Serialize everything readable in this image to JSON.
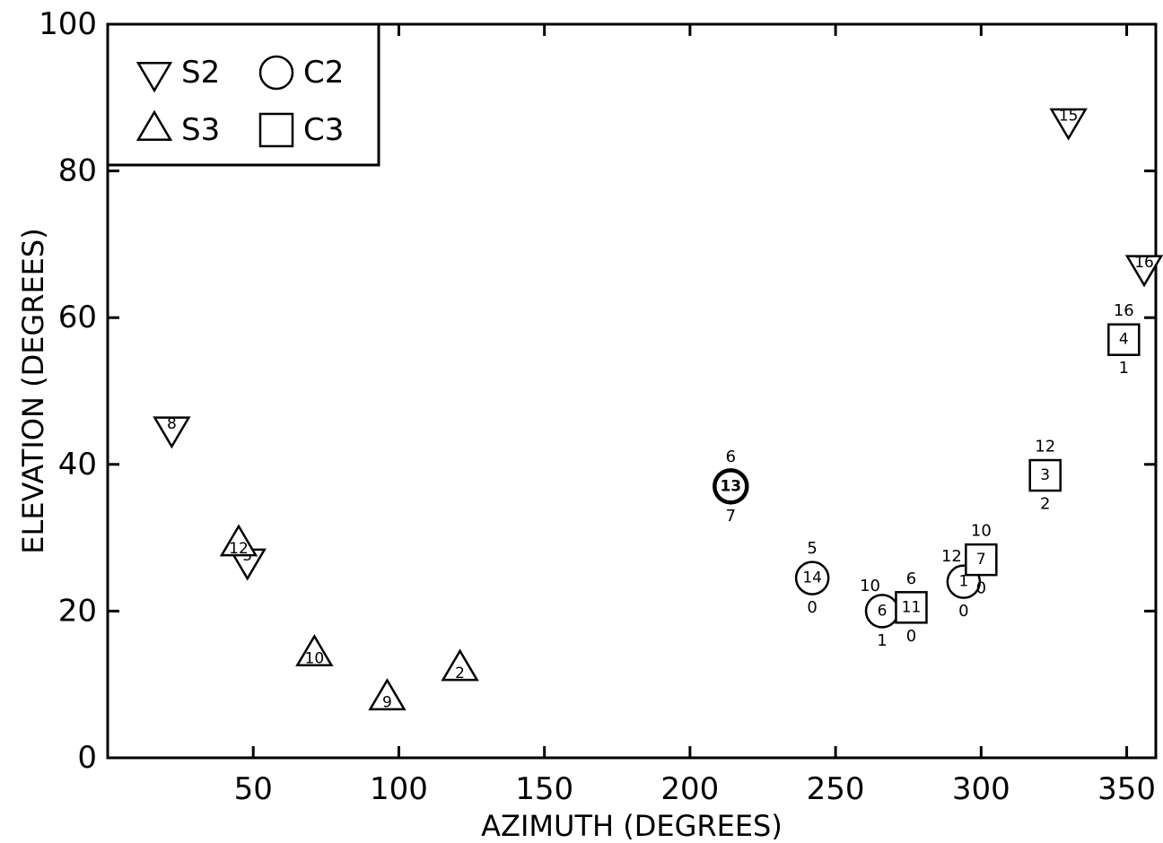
{
  "chart_data": {
    "type": "scatter",
    "title": "",
    "xlabel": "AZIMUTH (DEGREES)",
    "ylabel": "ELEVATION (DEGREES)",
    "xlim": [
      0,
      360
    ],
    "ylim": [
      0,
      100
    ],
    "xticks": [
      50,
      100,
      150,
      200,
      250,
      300,
      350
    ],
    "yticks": [
      0,
      20,
      40,
      60,
      80,
      100
    ],
    "grid": false,
    "legend": {
      "position": "top-left",
      "entries": [
        {
          "label": "S2",
          "marker": "triangle-down"
        },
        {
          "label": "C2",
          "marker": "circle"
        },
        {
          "label": "S3",
          "marker": "triangle-up"
        },
        {
          "label": "C3",
          "marker": "square"
        }
      ]
    },
    "series": [
      {
        "name": "S2",
        "marker": "triangle-down",
        "points": [
          {
            "x": 22,
            "y": 45,
            "label": "8"
          },
          {
            "x": 48,
            "y": 27,
            "label": "5"
          },
          {
            "x": 330,
            "y": 87,
            "label": "15"
          },
          {
            "x": 356,
            "y": 67,
            "label": "16"
          }
        ]
      },
      {
        "name": "S3",
        "marker": "triangle-up",
        "points": [
          {
            "x": 45,
            "y": 29,
            "label": "12"
          },
          {
            "x": 71,
            "y": 14,
            "label": "10"
          },
          {
            "x": 96,
            "y": 8,
            "label": "9"
          },
          {
            "x": 121,
            "y": 12,
            "label": "2"
          }
        ]
      },
      {
        "name": "C2",
        "marker": "circle",
        "points": [
          {
            "x": 214,
            "y": 37,
            "label": "13",
            "above": "6",
            "below": "7",
            "bold": true
          },
          {
            "x": 242,
            "y": 24.5,
            "label": "14",
            "above": "5",
            "below": "0"
          },
          {
            "x": 266,
            "y": 20,
            "label": "6",
            "left_above": "10",
            "below": "1"
          },
          {
            "x": 294,
            "y": 24,
            "label": "1",
            "left_above": "12",
            "below": "0"
          }
        ]
      },
      {
        "name": "C3",
        "marker": "square",
        "points": [
          {
            "x": 276,
            "y": 20.5,
            "label": "11",
            "above": "6",
            "below": "0"
          },
          {
            "x": 300,
            "y": 27,
            "label": "7",
            "above": "10",
            "below": "0"
          },
          {
            "x": 322,
            "y": 38.5,
            "label": "3",
            "above": "12",
            "below": "2"
          },
          {
            "x": 349,
            "y": 57,
            "label": "4",
            "above": "16",
            "below": "1"
          }
        ]
      }
    ]
  }
}
